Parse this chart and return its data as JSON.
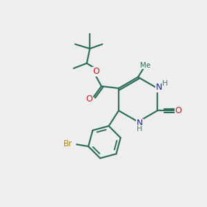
{
  "bg_color": "#eeeeee",
  "bond_color": "#2d6e5e",
  "n_color": "#1a1acc",
  "o_color": "#cc1a1a",
  "br_color": "#b8860b",
  "h_color": "#4a7a6a",
  "bond_lw": 1.6,
  "figsize": [
    3.0,
    3.0
  ],
  "dpi": 100,
  "xlim": [
    0,
    10
  ],
  "ylim": [
    0,
    10
  ]
}
